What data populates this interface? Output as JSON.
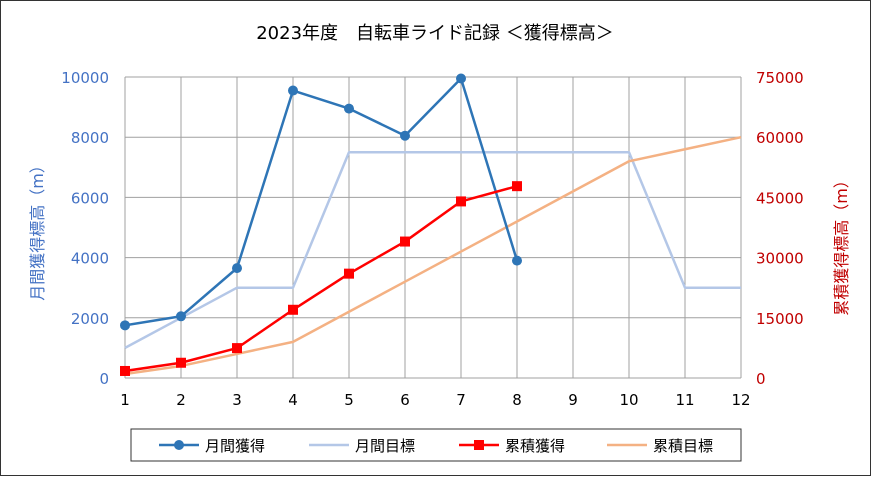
{
  "chart_data": {
    "type": "line",
    "title": "2023年度　自転車ライド記録 ＜獲得標高＞",
    "xlabel": "",
    "ylabel_left": "月間獲得標高（m）",
    "ylabel_right": "累積獲得標高（m）",
    "categories": [
      "1",
      "2",
      "3",
      "4",
      "5",
      "6",
      "7",
      "8",
      "9",
      "10",
      "11",
      "12"
    ],
    "ylim_left": [
      0,
      10000
    ],
    "ylim_right": [
      0,
      75000
    ],
    "yticks_left": [
      "0",
      "2000",
      "4000",
      "6000",
      "8000",
      "10000"
    ],
    "yticks_right": [
      "0",
      "15000",
      "30000",
      "45000",
      "60000",
      "75000"
    ],
    "grid": true,
    "legend_position": "bottom",
    "series": [
      {
        "name": "月間獲得",
        "axis": "left",
        "color": "#2E75B6",
        "marker": "circle",
        "values": [
          1750,
          2050,
          3650,
          9550,
          8950,
          8050,
          9950,
          3900,
          null,
          null,
          null,
          null
        ]
      },
      {
        "name": "月間目標",
        "axis": "left",
        "color": "#B4C7E7",
        "marker": "none",
        "values": [
          1000,
          2000,
          3000,
          3000,
          7500,
          7500,
          7500,
          7500,
          7500,
          7500,
          3000,
          3000
        ]
      },
      {
        "name": "累積獲得",
        "axis": "right",
        "color": "#FF0000",
        "marker": "square",
        "values": [
          1750,
          3800,
          7450,
          17000,
          26000,
          34000,
          44000,
          47800,
          null,
          null,
          null,
          null
        ]
      },
      {
        "name": "累積目標",
        "axis": "right",
        "color": "#F4B183",
        "marker": "none",
        "values": [
          1000,
          3000,
          6000,
          9000,
          16500,
          24000,
          31500,
          39000,
          46500,
          54000,
          57000,
          60000
        ]
      }
    ]
  },
  "colors": {
    "left_axis_text": "#4472C4",
    "right_axis_text": "#C00000",
    "grid": "#A0A0A0"
  }
}
